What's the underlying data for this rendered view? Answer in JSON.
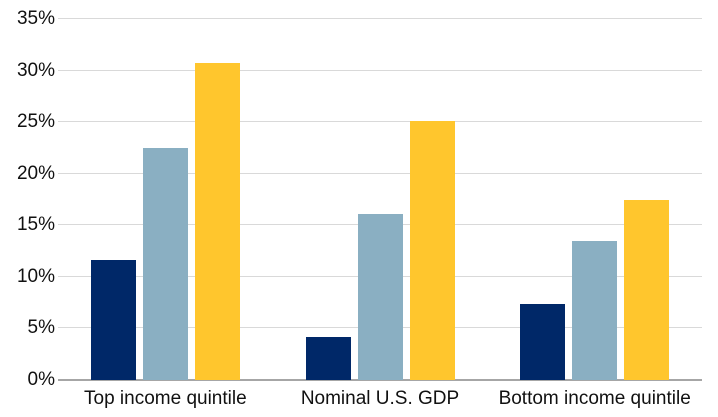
{
  "chart_data": {
    "type": "bar",
    "title": "",
    "xlabel": "",
    "ylabel": "",
    "categories": [
      "Top income quintile",
      "Nominal U.S. GDP",
      "Bottom income quintile"
    ],
    "series": [
      {
        "name": "navy",
        "color": "#002868",
        "values": [
          11.6,
          4.2,
          7.4
        ]
      },
      {
        "name": "light-blue",
        "color": "#8AAFC2",
        "values": [
          22.5,
          16.1,
          13.5
        ]
      },
      {
        "name": "yellow",
        "color": "#FFC62D",
        "values": [
          30.7,
          25.1,
          17.5
        ]
      }
    ],
    "ylim": [
      0,
      35
    ],
    "ytick_step": 5,
    "ytick_labels": [
      "0%",
      "5%",
      "10%",
      "15%",
      "20%",
      "25%",
      "30%",
      "35%"
    ],
    "grid": true,
    "legend_position": "none",
    "colors": {
      "gridline": "#d9d9d9",
      "axis_line": "#a6a6a6",
      "tick_text": "#111111"
    }
  }
}
